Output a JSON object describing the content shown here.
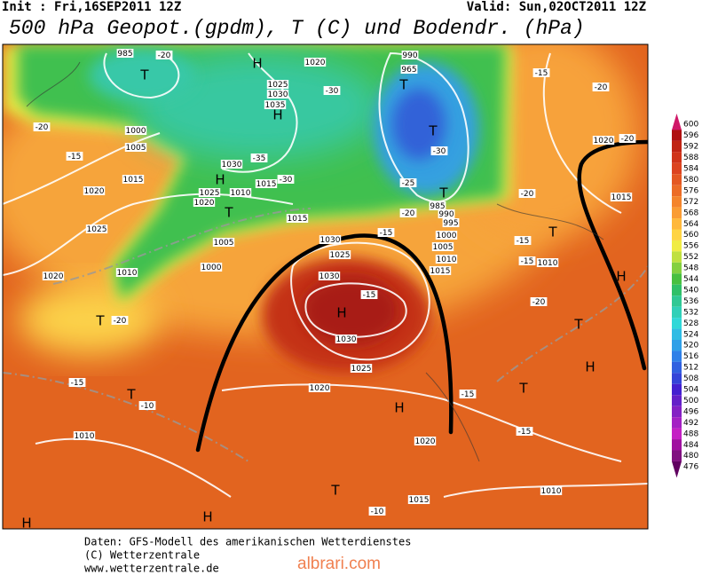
{
  "header": {
    "init": "Init : Fri,16SEP2011 12Z",
    "valid": "Valid: Sun,02OCT2011 12Z",
    "title": "500 hPa Geopot.(gpdm), T (C) und Bodendr. (hPa)"
  },
  "legend": {
    "levels": [
      600,
      596,
      592,
      588,
      584,
      580,
      576,
      572,
      568,
      564,
      560,
      556,
      552,
      548,
      544,
      540,
      536,
      532,
      528,
      524,
      520,
      516,
      512,
      508,
      504,
      500,
      496,
      492,
      488,
      484,
      480,
      476
    ],
    "colors": [
      "#d01868",
      "#b01010",
      "#c02414",
      "#d0341a",
      "#dc4420",
      "#e45822",
      "#ec6c26",
      "#f4842c",
      "#fa9c34",
      "#ffb83c",
      "#ffd444",
      "#f0ec44",
      "#c0e040",
      "#84d040",
      "#48c040",
      "#30c068",
      "#30c894",
      "#30d0b8",
      "#30d8d8",
      "#30bce4",
      "#30a0e8",
      "#3080e8",
      "#3060e0",
      "#3444d8",
      "#4420d0",
      "#6420c8",
      "#8420c4",
      "#a420c4",
      "#c420c4",
      "#a010a0",
      "#801080",
      "#600060"
    ]
  },
  "map_labels": [
    "T",
    "T",
    "T",
    "H",
    "H",
    "H",
    "T",
    "T",
    "T",
    "H",
    "T",
    "H",
    "T",
    "H",
    "T",
    "H",
    "T",
    "T",
    "H",
    "H",
    "985",
    "1020",
    "1025",
    "1030",
    "1035",
    "1000",
    "1005",
    "1015",
    "1020",
    "1030",
    "1015",
    "1010",
    "1025",
    "1020",
    "1015",
    "1005",
    "1000",
    "1025",
    "1020",
    "1010",
    "1030",
    "1025",
    "1030",
    "1030",
    "1025",
    "1020",
    "1010",
    "1020",
    "1015",
    "1010",
    "1010",
    "1015",
    "1020",
    "985",
    "990",
    "995",
    "1000",
    "1005",
    "1010",
    "1015",
    "965",
    "990",
    "-20",
    "-20",
    "-15",
    "-30",
    "-35",
    "-30",
    "-30",
    "-25",
    "-20",
    "-15",
    "-15",
    "-20",
    "-15",
    "-10",
    "-15",
    "-20",
    "-20",
    "-20",
    "-15",
    "-15",
    "-20",
    "-15",
    "-15",
    "-10"
  ],
  "footer": {
    "lines": [
      "Daten: GFS-Modell des amerikanischen Wetterdienstes",
      "(C) Wetterzentrale",
      "www.wetterzentrale.de"
    ],
    "watermark": "albrari.com"
  }
}
